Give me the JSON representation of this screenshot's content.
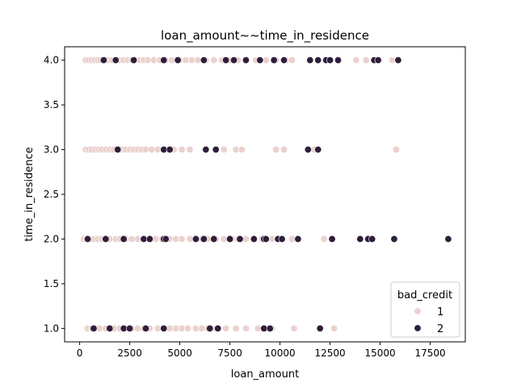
{
  "chart_data": {
    "type": "scatter",
    "title": "loan_amount~~time_in_residence",
    "xlabel": "loan_amount",
    "ylabel": "time_in_residence",
    "xlim": [
      -750,
      19250
    ],
    "ylim": [
      0.85,
      4.15
    ],
    "xticks": [
      0,
      2500,
      5000,
      7500,
      10000,
      12500,
      15000,
      17500
    ],
    "xtick_labels": [
      "0",
      "2500",
      "5000",
      "7500",
      "10000",
      "12500",
      "15000",
      "17500"
    ],
    "yticks": [
      1.0,
      1.5,
      2.0,
      2.5,
      3.0,
      3.5,
      4.0
    ],
    "ytick_labels": [
      "1.0",
      "1.5",
      "2.0",
      "2.5",
      "3.0",
      "3.5",
      "4.0"
    ],
    "grid": false,
    "legend": {
      "title": "bad_credit",
      "position": "bottom-right",
      "entries": [
        "1",
        "2"
      ]
    },
    "colors": {
      "1": "#ebd1cf",
      "2": "#2e1e3b"
    },
    "series": [
      {
        "name": "1",
        "points": [
          [
            300,
            4
          ],
          [
            450,
            4
          ],
          [
            600,
            4
          ],
          [
            750,
            4
          ],
          [
            900,
            4
          ],
          [
            1050,
            4
          ],
          [
            1200,
            4
          ],
          [
            1400,
            4
          ],
          [
            1600,
            4
          ],
          [
            1800,
            4
          ],
          [
            2000,
            4
          ],
          [
            2200,
            4
          ],
          [
            2400,
            4
          ],
          [
            2600,
            4
          ],
          [
            2800,
            4
          ],
          [
            3000,
            4
          ],
          [
            3200,
            4
          ],
          [
            3400,
            4
          ],
          [
            3700,
            4
          ],
          [
            4000,
            4
          ],
          [
            4300,
            4
          ],
          [
            4600,
            4
          ],
          [
            5000,
            4
          ],
          [
            5300,
            4
          ],
          [
            5600,
            4
          ],
          [
            5900,
            4
          ],
          [
            6300,
            4
          ],
          [
            6700,
            4
          ],
          [
            7100,
            4
          ],
          [
            7500,
            4
          ],
          [
            7900,
            4
          ],
          [
            8300,
            4
          ],
          [
            8800,
            4
          ],
          [
            9300,
            4
          ],
          [
            9800,
            4
          ],
          [
            10300,
            4
          ],
          [
            10600,
            4
          ],
          [
            13800,
            4
          ],
          [
            14300,
            4
          ],
          [
            15600,
            4
          ],
          [
            300,
            3
          ],
          [
            450,
            3
          ],
          [
            600,
            3
          ],
          [
            800,
            3
          ],
          [
            950,
            3
          ],
          [
            1100,
            3
          ],
          [
            1300,
            3
          ],
          [
            1500,
            3
          ],
          [
            1700,
            3
          ],
          [
            2100,
            3
          ],
          [
            2300,
            3
          ],
          [
            2500,
            3
          ],
          [
            2700,
            3
          ],
          [
            2900,
            3
          ],
          [
            3100,
            3
          ],
          [
            3300,
            3
          ],
          [
            3600,
            3
          ],
          [
            3900,
            3
          ],
          [
            4300,
            3
          ],
          [
            4700,
            3
          ],
          [
            5100,
            3
          ],
          [
            5500,
            3
          ],
          [
            6800,
            3
          ],
          [
            7200,
            3
          ],
          [
            7800,
            3
          ],
          [
            8100,
            3
          ],
          [
            9800,
            3
          ],
          [
            10200,
            3
          ],
          [
            11700,
            3
          ],
          [
            15800,
            3
          ],
          [
            200,
            2
          ],
          [
            350,
            2
          ],
          [
            500,
            2
          ],
          [
            700,
            2
          ],
          [
            900,
            2
          ],
          [
            1100,
            2
          ],
          [
            1300,
            2
          ],
          [
            1500,
            2
          ],
          [
            1800,
            2
          ],
          [
            2000,
            2
          ],
          [
            2300,
            2
          ],
          [
            2600,
            2
          ],
          [
            2900,
            2
          ],
          [
            3200,
            2
          ],
          [
            3500,
            2
          ],
          [
            3800,
            2
          ],
          [
            4100,
            2
          ],
          [
            4500,
            2
          ],
          [
            4800,
            2
          ],
          [
            5100,
            2
          ],
          [
            5500,
            2
          ],
          [
            5800,
            2
          ],
          [
            6100,
            2
          ],
          [
            6400,
            2
          ],
          [
            6800,
            2
          ],
          [
            7200,
            2
          ],
          [
            7600,
            2
          ],
          [
            7900,
            2
          ],
          [
            8300,
            2
          ],
          [
            8700,
            2
          ],
          [
            9100,
            2
          ],
          [
            9600,
            2
          ],
          [
            10600,
            2
          ],
          [
            12200,
            2
          ],
          [
            400,
            1
          ],
          [
            600,
            1
          ],
          [
            800,
            1
          ],
          [
            1000,
            1
          ],
          [
            1300,
            1
          ],
          [
            1700,
            1
          ],
          [
            2000,
            1
          ],
          [
            2300,
            1
          ],
          [
            2600,
            1
          ],
          [
            2900,
            1
          ],
          [
            3200,
            1
          ],
          [
            3500,
            1
          ],
          [
            3900,
            1
          ],
          [
            4200,
            1
          ],
          [
            4500,
            1
          ],
          [
            4800,
            1
          ],
          [
            5100,
            1
          ],
          [
            5400,
            1
          ],
          [
            5800,
            1
          ],
          [
            6100,
            1
          ],
          [
            6400,
            1
          ],
          [
            6800,
            1
          ],
          [
            7300,
            1
          ],
          [
            7800,
            1
          ],
          [
            8300,
            1
          ],
          [
            8900,
            1
          ],
          [
            9600,
            1
          ],
          [
            10700,
            1
          ],
          [
            12700,
            1
          ]
        ]
      },
      {
        "name": "2",
        "points": [
          [
            1200,
            4
          ],
          [
            1800,
            4
          ],
          [
            2700,
            4
          ],
          [
            4200,
            4
          ],
          [
            4900,
            4
          ],
          [
            6200,
            4
          ],
          [
            7300,
            4
          ],
          [
            7700,
            4
          ],
          [
            8300,
            4
          ],
          [
            9000,
            4
          ],
          [
            9700,
            4
          ],
          [
            10200,
            4
          ],
          [
            11500,
            4
          ],
          [
            11900,
            4
          ],
          [
            12300,
            4
          ],
          [
            12500,
            4
          ],
          [
            12900,
            4
          ],
          [
            14700,
            4
          ],
          [
            14900,
            4
          ],
          [
            15900,
            4
          ],
          [
            1900,
            3
          ],
          [
            4200,
            3
          ],
          [
            4500,
            3
          ],
          [
            6300,
            3
          ],
          [
            6800,
            3
          ],
          [
            11400,
            3
          ],
          [
            11900,
            3
          ],
          [
            400,
            2
          ],
          [
            1300,
            2
          ],
          [
            2200,
            2
          ],
          [
            3200,
            2
          ],
          [
            3500,
            2
          ],
          [
            4200,
            2
          ],
          [
            4300,
            2
          ],
          [
            5800,
            2
          ],
          [
            6200,
            2
          ],
          [
            6700,
            2
          ],
          [
            7500,
            2
          ],
          [
            8000,
            2
          ],
          [
            8700,
            2
          ],
          [
            9200,
            2
          ],
          [
            9300,
            2
          ],
          [
            9900,
            2
          ],
          [
            10100,
            2
          ],
          [
            10900,
            2
          ],
          [
            12600,
            2
          ],
          [
            14000,
            2
          ],
          [
            14400,
            2
          ],
          [
            14600,
            2
          ],
          [
            15700,
            2
          ],
          [
            18400,
            2
          ],
          [
            700,
            1
          ],
          [
            1500,
            1
          ],
          [
            2200,
            1
          ],
          [
            2500,
            1
          ],
          [
            3300,
            1
          ],
          [
            4200,
            1
          ],
          [
            6500,
            1
          ],
          [
            6900,
            1
          ],
          [
            9200,
            1
          ],
          [
            9500,
            1
          ],
          [
            12000,
            1
          ]
        ]
      }
    ]
  }
}
